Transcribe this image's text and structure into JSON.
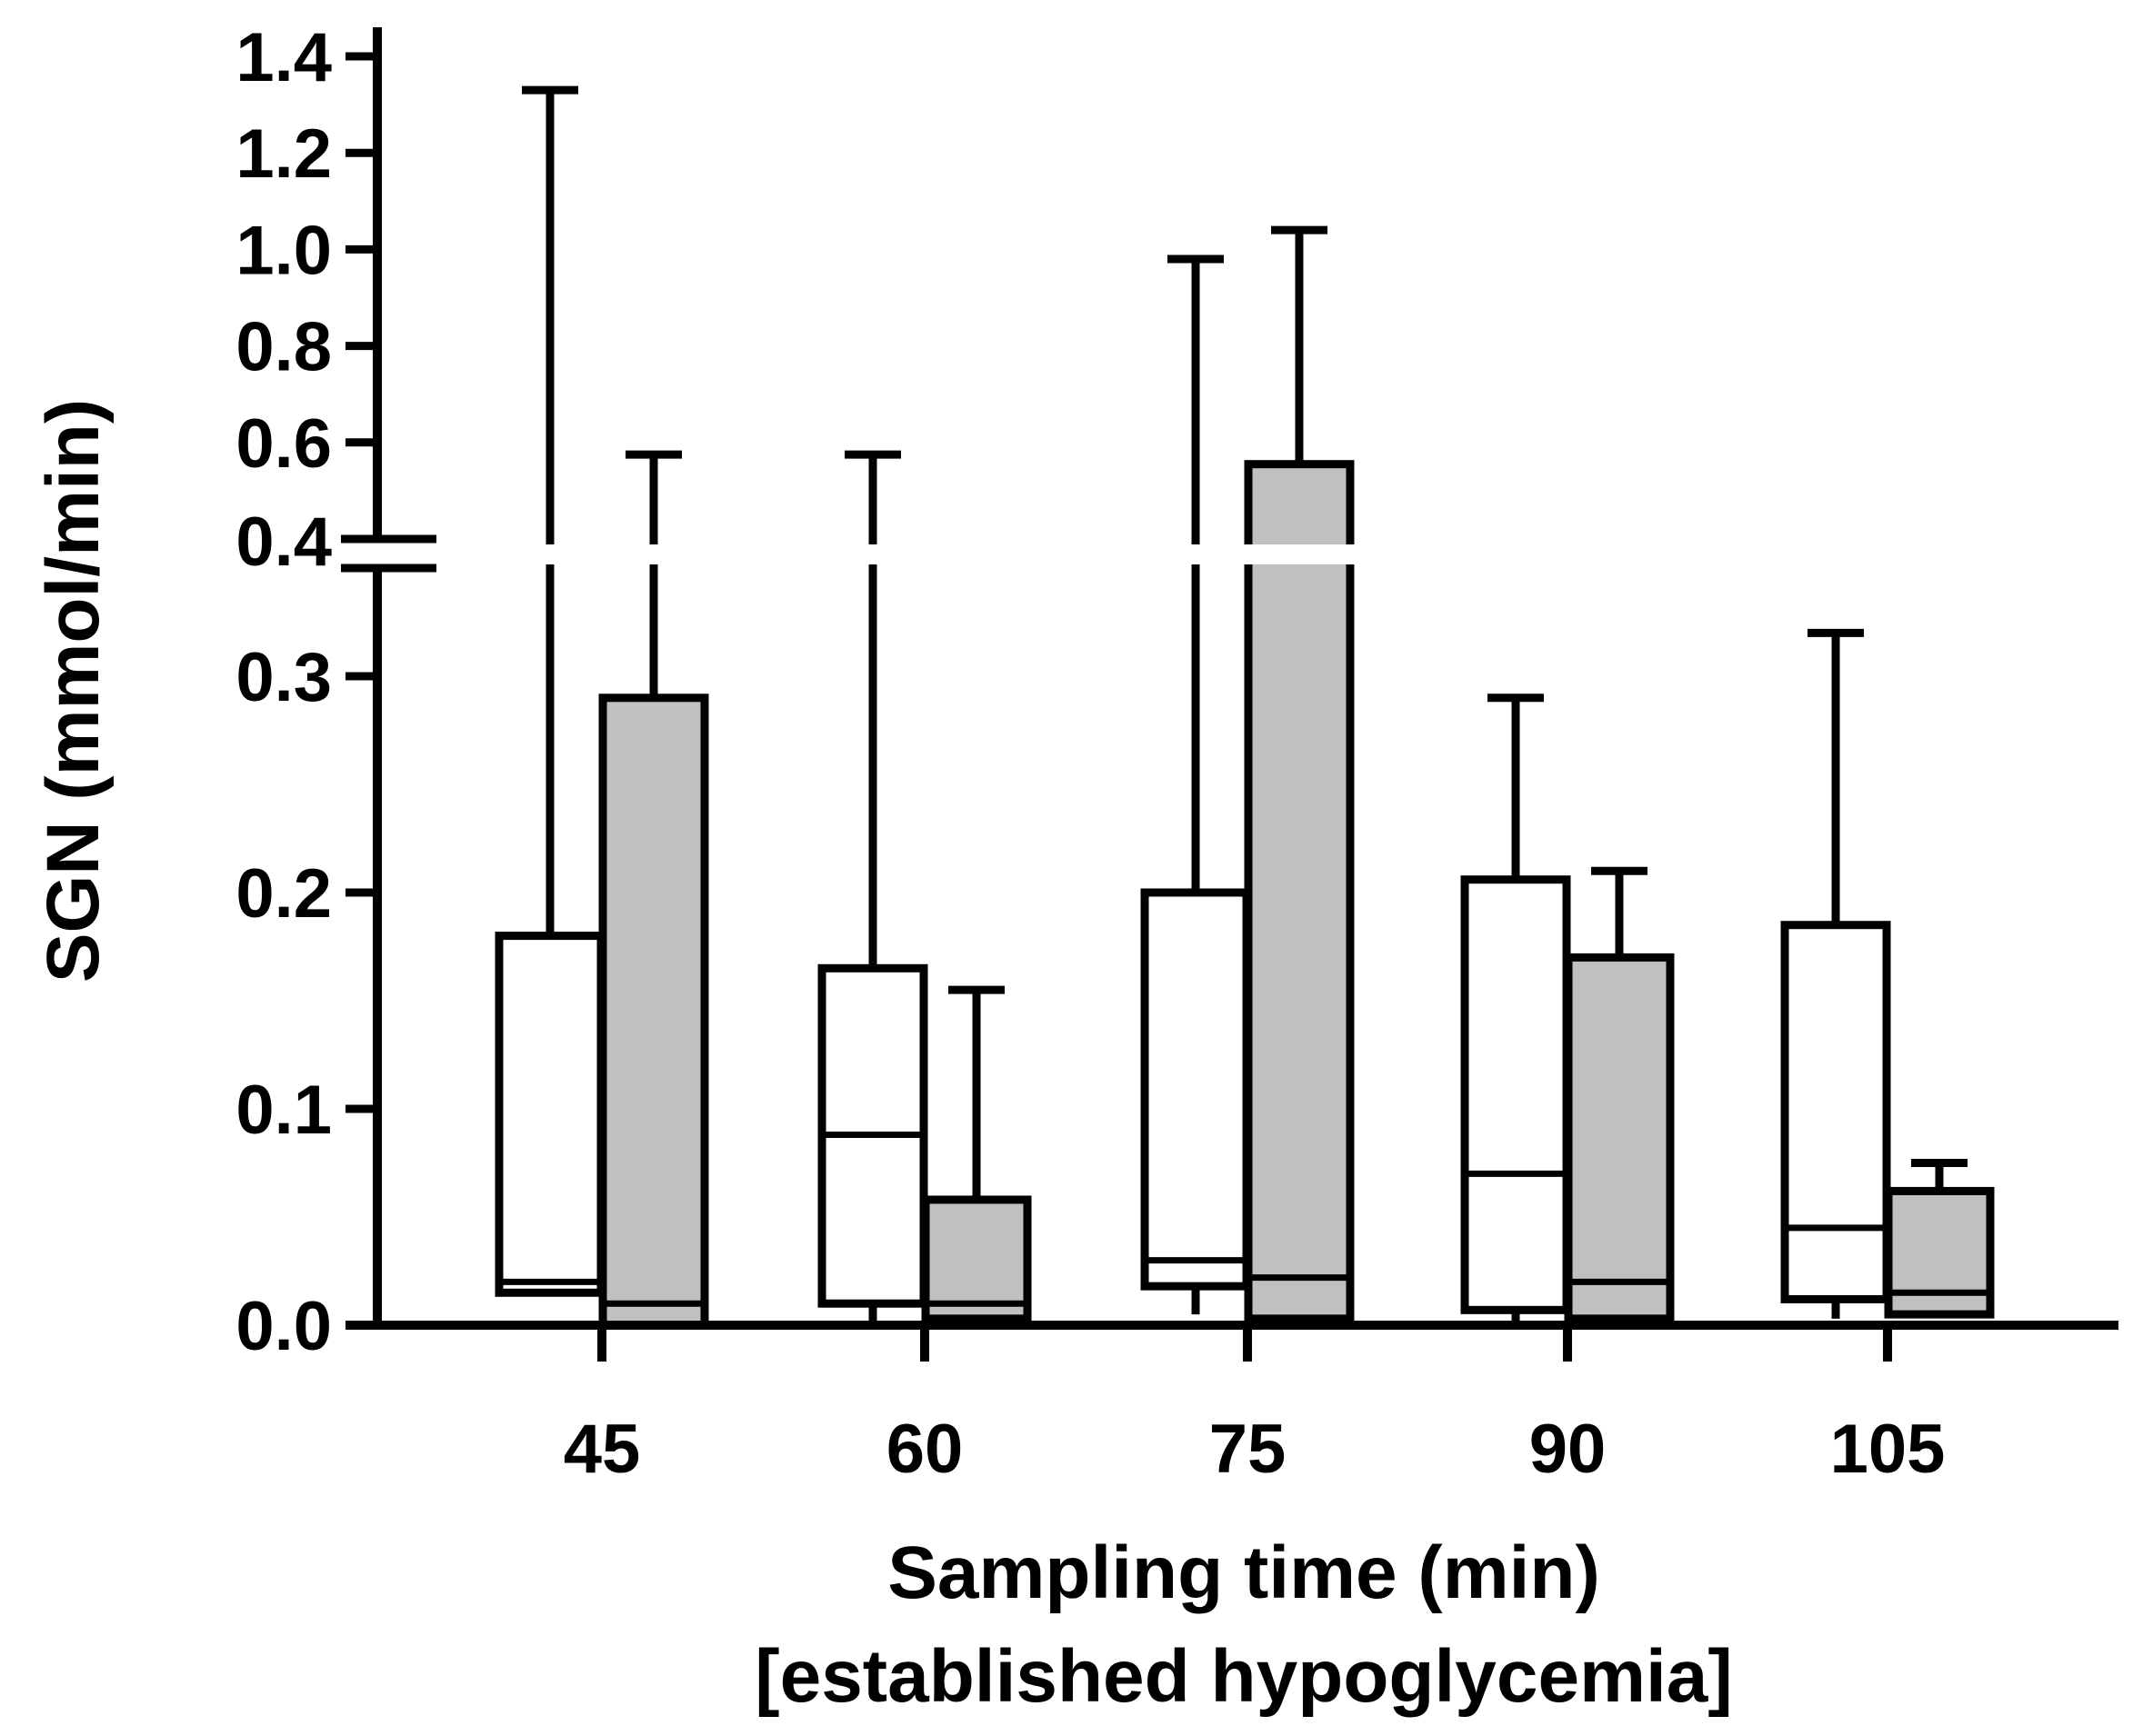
{
  "chart_data": {
    "type": "boxplot",
    "title": "",
    "xlabel": "Sampling time (min)",
    "xlabel_line2": "[established hypoglycemia]",
    "ylabel": "SGN (mmol/min)",
    "broken_axis": {
      "lower_range": [
        0,
        0.35
      ],
      "upper_range": [
        0.4,
        1.4
      ],
      "lower_ticks": [
        "0.0",
        "0.1",
        "0.2",
        "0.3"
      ],
      "upper_ticks": [
        "0.4",
        "0.6",
        "0.8",
        "1.0",
        "1.2",
        "1.4"
      ]
    },
    "categories": [
      "45",
      "60",
      "75",
      "90",
      "105"
    ],
    "colors": {
      "group_white": "#ffffff",
      "group_gray": "#c0c0c0",
      "stroke": "#000000"
    },
    "series": [
      {
        "name": "white",
        "boxes": [
          {
            "min": 0.015,
            "q1": 0.015,
            "median": 0.02,
            "q3": 0.18,
            "max": 1.33
          },
          {
            "min": 0.0,
            "q1": 0.01,
            "median": 0.088,
            "q3": 0.165,
            "max": 0.575
          },
          {
            "min": 0.005,
            "q1": 0.018,
            "median": 0.03,
            "q3": 0.2,
            "max": 0.98
          },
          {
            "min": 0.0,
            "q1": 0.007,
            "median": 0.07,
            "q3": 0.206,
            "max": 0.29
          },
          {
            "min": 0.003,
            "q1": 0.012,
            "median": 0.045,
            "q3": 0.185,
            "max": 0.32
          }
        ]
      },
      {
        "name": "gray",
        "boxes": [
          {
            "min": 0.0,
            "q1": 0.0,
            "median": 0.01,
            "q3": 0.29,
            "max": 0.575
          },
          {
            "min": 0.0,
            "q1": 0.003,
            "median": 0.01,
            "q3": 0.058,
            "max": 0.155
          },
          {
            "min": 0.003,
            "q1": 0.003,
            "median": 0.022,
            "q3": 0.555,
            "max": 1.04
          },
          {
            "min": 0.0,
            "q1": 0.003,
            "median": 0.02,
            "q3": 0.17,
            "max": 0.21
          },
          {
            "min": 0.005,
            "q1": 0.005,
            "median": 0.015,
            "q3": 0.062,
            "max": 0.075
          }
        ]
      }
    ]
  }
}
